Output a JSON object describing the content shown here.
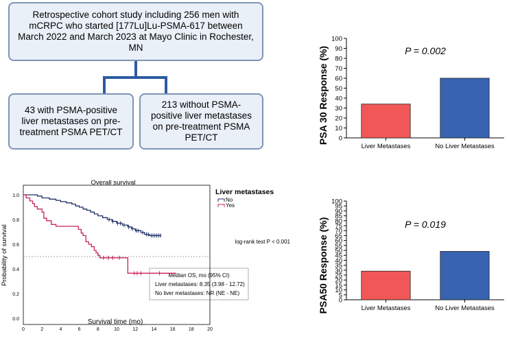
{
  "flowchart": {
    "top_box": "Retrospective cohort study including 256 men with mCRPC who started [177Lu]Lu-PSMA-617 between March 2022 and March 2023 at Mayo Clinic in Rochester, MN",
    "left_box": "43 with PSMA-positive liver metastases on pre-treatment PSMA PET/CT",
    "right_box": "213 without PSMA-positive liver metastases on pre-treatment PSMA PET/CT"
  },
  "colors": {
    "liver_bar": "#f25757",
    "no_liver_bar": "#3763b0",
    "km_no": "#1f2f66",
    "km_yes": "#c8205c",
    "box_fill": "#eaf0f7",
    "box_border": "#7d95b5",
    "connector": "#2e5aa1"
  },
  "chart_data": [
    {
      "id": "psa30",
      "type": "bar",
      "title": "",
      "annotation": "P = 0.002",
      "categories": [
        "Liver Metastases",
        "No Liver Metastases"
      ],
      "values": [
        34,
        60
      ],
      "ylabel": "PSA 30 Response (%)",
      "xlabel": "",
      "ylim": [
        0,
        100
      ],
      "yticks": [
        0,
        10,
        20,
        30,
        40,
        50,
        60,
        70,
        80,
        90,
        100
      ]
    },
    {
      "id": "psa50",
      "type": "bar",
      "title": "",
      "annotation": "P = 0.019",
      "categories": [
        "Liver Metastases",
        "No Liver Metastases"
      ],
      "values": [
        29,
        49
      ],
      "ylabel": "PSA50 Response (%)",
      "xlabel": "",
      "ylim": [
        0,
        100
      ],
      "yticks": [
        0,
        5,
        10,
        15,
        20,
        25,
        30,
        35,
        40,
        45,
        50,
        55,
        60,
        65,
        70,
        75,
        80,
        85,
        90,
        95,
        100
      ]
    },
    {
      "id": "km",
      "type": "line",
      "title": "Overall survival",
      "xlabel": "Survival time (mo)",
      "ylabel": "Probability of survival",
      "xlim": [
        0,
        20
      ],
      "ylim": [
        0,
        1
      ],
      "xticks": [
        0,
        2,
        4,
        6,
        8,
        10,
        12,
        14,
        16,
        18,
        20
      ],
      "yticks": [
        "0.0",
        "0.2",
        "0.4",
        "0.6",
        "0.8",
        "1.0"
      ],
      "legend_title": "Liver metastases",
      "legend_position": "top-right",
      "reference_line": 0.5,
      "test_label": "log-rank test P < 0.001",
      "stats_lines": [
        "Median OS, mo (95% CI)",
        "Liver metastases: 8.35 (3.98 - 12.72)",
        "No liver metastases: NR (NE - NE)"
      ],
      "series": [
        {
          "name": "No",
          "color": "#1f2f66",
          "steps": [
            [
              0,
              1.0
            ],
            [
              1.5,
              0.99
            ],
            [
              2,
              0.975
            ],
            [
              2.8,
              0.965
            ],
            [
              3.5,
              0.955
            ],
            [
              4,
              0.945
            ],
            [
              4.6,
              0.935
            ],
            [
              5.2,
              0.925
            ],
            [
              5.6,
              0.91
            ],
            [
              6,
              0.9
            ],
            [
              6.4,
              0.885
            ],
            [
              6.8,
              0.875
            ],
            [
              7.2,
              0.86
            ],
            [
              7.6,
              0.845
            ],
            [
              8,
              0.83
            ],
            [
              8.5,
              0.815
            ],
            [
              9,
              0.8
            ],
            [
              9.5,
              0.785
            ],
            [
              10,
              0.77
            ],
            [
              10.6,
              0.755
            ],
            [
              11.2,
              0.74
            ],
            [
              11.6,
              0.725
            ],
            [
              12,
              0.71
            ],
            [
              12.6,
              0.695
            ],
            [
              13,
              0.68
            ],
            [
              13.5,
              0.67
            ],
            [
              14.8,
              0.67
            ]
          ],
          "censored_x": [
            9.2,
            9.6,
            10.1,
            10.4,
            10.8,
            11.3,
            11.7,
            12.1,
            12.3,
            12.8,
            13.2,
            13.4,
            13.7,
            13.9,
            14.1,
            14.3,
            14.5,
            14.7
          ]
        },
        {
          "name": "Yes",
          "color": "#c8205c",
          "steps": [
            [
              0,
              1.0
            ],
            [
              0.3,
              0.975
            ],
            [
              0.7,
              0.95
            ],
            [
              1,
              0.93
            ],
            [
              1.2,
              0.905
            ],
            [
              1.5,
              0.885
            ],
            [
              2,
              0.86
            ],
            [
              2.2,
              0.81
            ],
            [
              2.5,
              0.79
            ],
            [
              3,
              0.76
            ],
            [
              3.5,
              0.745
            ],
            [
              5.6,
              0.745
            ],
            [
              5.9,
              0.72
            ],
            [
              6.2,
              0.69
            ],
            [
              6.4,
              0.67
            ],
            [
              6.7,
              0.62
            ],
            [
              7,
              0.6
            ],
            [
              7.3,
              0.58
            ],
            [
              7.6,
              0.55
            ],
            [
              7.8,
              0.53
            ],
            [
              8,
              0.51
            ],
            [
              8.2,
              0.49
            ],
            [
              11,
              0.49
            ],
            [
              11.2,
              0.365
            ],
            [
              16.4,
              0.365
            ]
          ],
          "censored_x": [
            8.6,
            9.1,
            9.6,
            10.3,
            11.9,
            12.2,
            12.6,
            14.6
          ]
        }
      ]
    }
  ]
}
